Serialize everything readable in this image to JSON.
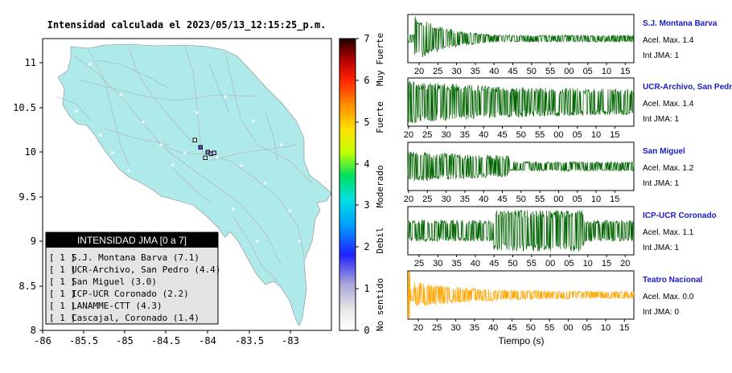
{
  "map": {
    "title": "Intensidad calculada el 2023/05/13_12:15:25_p.m.",
    "x_ticks": [
      "-86",
      "-85.5",
      "-85",
      "-84.5",
      "-84",
      "-83.5",
      "-83"
    ],
    "y_ticks": [
      "11",
      "10.5",
      "10",
      "9.5",
      "9",
      "8.5",
      "8"
    ],
    "colorbar": {
      "ticks": [
        "0",
        "1",
        "2",
        "3",
        "4",
        "5",
        "6",
        "7"
      ],
      "labels": [
        "No sentido",
        "Debil",
        "Moderado",
        "Fuerte",
        "Muy Fuerte"
      ]
    },
    "legend": {
      "header": "INTENSIDAD JMA [0 a 7]",
      "items": [
        {
          "jma": "[ 1 ]",
          "station": "S.J. Montana Barva (7.1)"
        },
        {
          "jma": "[ 1 ]",
          "station": "UCR-Archivo, San Pedro (4.4)"
        },
        {
          "jma": "[ 1 ]",
          "station": "San Miguel (3.0)"
        },
        {
          "jma": "[ 1 ]",
          "station": "ICP-UCR Coronado (2.2)"
        },
        {
          "jma": "[ 1 ]",
          "station": "LANAMME-CTT (4.3)"
        },
        {
          "jma": "[ 1 ]",
          "station": "Cascajal, Coronado (1.4)"
        }
      ]
    },
    "colors": {
      "land": "#aeeaea",
      "frame": "#000000",
      "legend_header_bg": "#000000",
      "legend_bg": "#e4e4e4"
    }
  },
  "chart_data": {
    "type": "line",
    "xlabel": "Tiempo (s)",
    "series": [
      {
        "name": "S.J. Montana Barva",
        "accel_label": "Acel. Max. 1.4",
        "jma_label": "Int JMA: 1",
        "color": "#006400",
        "ticks": [
          "20",
          "25",
          "30",
          "35",
          "40",
          "45",
          "50",
          "55",
          "00",
          "05",
          "10",
          "15"
        ]
      },
      {
        "name": "UCR-Archivo, San Pedro",
        "accel_label": "Acel. Max. 1.4",
        "jma_label": "Int JMA: 1",
        "color": "#006400",
        "ticks": [
          "20",
          "25",
          "30",
          "35",
          "40",
          "45",
          "50",
          "55",
          "00",
          "05",
          "10",
          "15"
        ]
      },
      {
        "name": "San Miguel",
        "accel_label": "Acel. Max. 1.2",
        "jma_label": "Int JMA: 1",
        "color": "#006400",
        "ticks": [
          "20",
          "25",
          "30",
          "35",
          "40",
          "45",
          "50",
          "55",
          "00",
          "05",
          "10",
          "15"
        ]
      },
      {
        "name": "ICP-UCR Coronado",
        "accel_label": "Acel. Max. 1.1",
        "jma_label": "Int JMA: 1",
        "color": "#006400",
        "ticks": [
          "25",
          "30",
          "35",
          "40",
          "45",
          "50",
          "55",
          "00",
          "05",
          "10",
          "15",
          "20"
        ]
      },
      {
        "name": "Teatro Nacional",
        "accel_label": "Acel. Max. 0.0",
        "jma_label": "Int JMA: 0",
        "color": "#ffa500",
        "ticks": [
          "20",
          "25",
          "30",
          "35",
          "40",
          "45",
          "50",
          "55",
          "00",
          "05",
          "10",
          "15"
        ]
      }
    ]
  }
}
